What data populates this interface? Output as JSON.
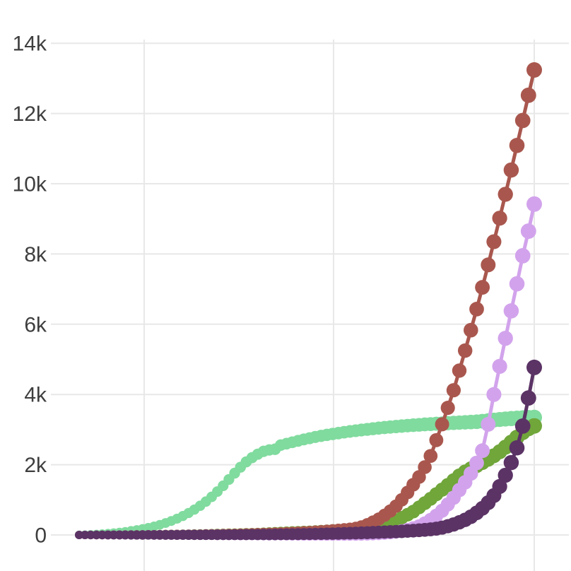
{
  "chart_data": {
    "type": "line",
    "title": "",
    "xlabel": "",
    "ylabel": "",
    "legend": "none",
    "grid": true,
    "n_points": 80,
    "x": "index 0-79, evenly spaced (x-axis tick labels not visible in crop)",
    "x_tick_labels": [],
    "ylim": [
      0,
      14000
    ],
    "y_ticks": [
      {
        "value": 0,
        "label": "0"
      },
      {
        "value": 2000,
        "label": "2k"
      },
      {
        "value": 4000,
        "label": "4k"
      },
      {
        "value": 6000,
        "label": "6k"
      },
      {
        "value": 8000,
        "label": "8k"
      },
      {
        "value": 10000,
        "label": "10k"
      },
      {
        "value": 12000,
        "label": "12k"
      },
      {
        "value": 14000,
        "label": "14k"
      }
    ],
    "marker_style": "filled circles, radius grows left-to-right",
    "series": [
      {
        "name": "mint-green-s-curve",
        "color": "#80DB9E",
        "final_value": 3344,
        "values": [
          5,
          10,
          16,
          24,
          34,
          46,
          60,
          77,
          97,
          120,
          146,
          175,
          208,
          246,
          290,
          340,
          398,
          464,
          540,
          626,
          722,
          830,
          950,
          1085,
          1235,
          1400,
          1580,
          1760,
          1930,
          2080,
          2200,
          2300,
          2380,
          2420,
          2440,
          2560,
          2600,
          2640,
          2680,
          2720,
          2755,
          2790,
          2820,
          2850,
          2875,
          2900,
          2925,
          2947,
          2968,
          2988,
          3007,
          3025,
          3042,
          3058,
          3073,
          3087,
          3100,
          3112,
          3124,
          3135,
          3146,
          3156,
          3166,
          3175,
          3184,
          3192,
          3200,
          3208,
          3216,
          3224,
          3240,
          3256,
          3272,
          3288,
          3302,
          3314,
          3324,
          3332,
          3339,
          3344
        ]
      },
      {
        "name": "olive-green",
        "color": "#70A63A",
        "final_value": 3105,
        "values": [
          0,
          0,
          0,
          1,
          1,
          1,
          2,
          2,
          3,
          3,
          4,
          5,
          6,
          7,
          8,
          9,
          10,
          11,
          12,
          13,
          15,
          17,
          19,
          21,
          24,
          27,
          30,
          32,
          35,
          38,
          40,
          45,
          50,
          56,
          62,
          68,
          74,
          80,
          85,
          90,
          95,
          103,
          112,
          121,
          130,
          139,
          148,
          157,
          165,
          172,
          178,
          183,
          187,
          250,
          330,
          410,
          490,
          575,
          665,
          785,
          905,
          1030,
          1160,
          1290,
          1420,
          1555,
          1690,
          1800,
          1890,
          1970,
          2060,
          2155,
          2255,
          2370,
          2500,
          2640,
          2780,
          2920,
          3030,
          3105
        ]
      },
      {
        "name": "sienna-brown",
        "color": "#A9574E",
        "final_value": 13240,
        "values": [
          0,
          0,
          0,
          0,
          0,
          1,
          1,
          1,
          2,
          2,
          3,
          3,
          4,
          4,
          5,
          6,
          7,
          8,
          9,
          10,
          11,
          12,
          14,
          16,
          18,
          20,
          22,
          25,
          28,
          31,
          34,
          38,
          42,
          46,
          50,
          55,
          60,
          66,
          73,
          80,
          88,
          97,
          107,
          118,
          130,
          143,
          157,
          172,
          195,
          235,
          295,
          370,
          455,
          560,
          680,
          820,
          1000,
          1210,
          1430,
          1650,
          1930,
          2250,
          2700,
          3150,
          3620,
          4120,
          4680,
          5250,
          5830,
          6430,
          7050,
          7690,
          8350,
          9020,
          9700,
          10390,
          11090,
          11800,
          12520,
          13240
        ]
      },
      {
        "name": "light-plum",
        "color": "#D2A3EC",
        "final_value": 9420,
        "values": [
          0,
          0,
          0,
          0,
          0,
          0,
          1,
          1,
          1,
          1,
          1,
          2,
          2,
          2,
          3,
          3,
          3,
          4,
          4,
          4,
          5,
          5,
          5,
          6,
          6,
          6,
          7,
          7,
          7,
          8,
          8,
          8,
          9,
          9,
          9,
          10,
          10,
          10,
          11,
          11,
          11,
          12,
          12,
          13,
          13,
          14,
          15,
          16,
          18,
          20,
          24,
          30,
          38,
          50,
          65,
          85,
          115,
          150,
          195,
          250,
          330,
          430,
          550,
          690,
          870,
          1060,
          1280,
          1500,
          1750,
          2050,
          2400,
          3150,
          4000,
          4800,
          5600,
          6380,
          7150,
          7950,
          8650,
          9420
        ]
      },
      {
        "name": "dark-purple",
        "color": "#5B3365",
        "final_value": 4770,
        "values": [
          0,
          0,
          0,
          0,
          0,
          0,
          0,
          1,
          1,
          1,
          1,
          1,
          2,
          2,
          2,
          3,
          3,
          3,
          4,
          4,
          5,
          5,
          6,
          6,
          7,
          7,
          8,
          9,
          10,
          11,
          12,
          13,
          14,
          15,
          16,
          18,
          20,
          22,
          24,
          26,
          28,
          30,
          33,
          36,
          39,
          42,
          46,
          50,
          55,
          60,
          65,
          70,
          76,
          82,
          88,
          95,
          103,
          112,
          122,
          133,
          145,
          160,
          180,
          210,
          250,
          300,
          360,
          430,
          520,
          630,
          760,
          920,
          1120,
          1380,
          1700,
          2060,
          2480,
          3100,
          3900,
          4770
        ]
      }
    ],
    "colors": {
      "grid": "#e8e8e8",
      "tick_text": "#3e3e3e",
      "background": "#ffffff"
    }
  }
}
